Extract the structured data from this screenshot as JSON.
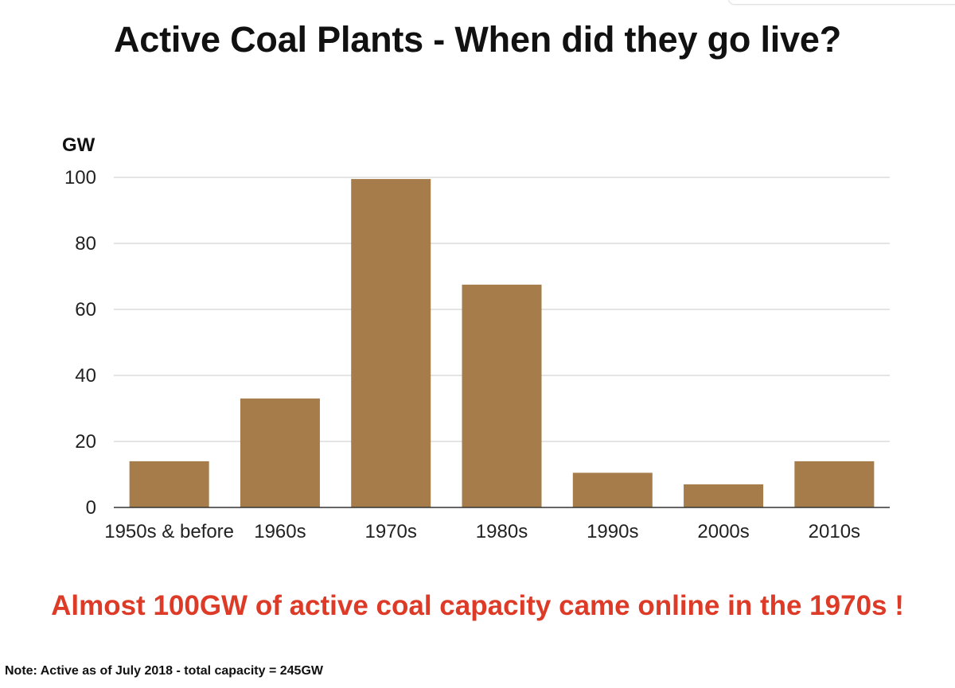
{
  "chart_data": {
    "type": "bar",
    "title": "Active Coal Plants - When did they go live?",
    "ylabel": "GW",
    "xlabel": "",
    "categories": [
      "1950s & before",
      "1960s",
      "1970s",
      "1980s",
      "1990s",
      "2000s",
      "2010s"
    ],
    "values": [
      14,
      33,
      99.5,
      67.5,
      10.5,
      7,
      14
    ],
    "ylim": [
      0,
      100
    ],
    "yticks": [
      0,
      20,
      40,
      60,
      80,
      100
    ],
    "grid": true,
    "bar_color": "#a57c4a",
    "grid_color": "#c8c8c8",
    "axis_color": "#333333"
  },
  "headline": {
    "text": "Almost 100GW of active coal capacity came online in the 1970s !",
    "color": "#dd3b27"
  },
  "note": {
    "text": "Note: Active as of July 2018 - total capacity = 245GW"
  }
}
